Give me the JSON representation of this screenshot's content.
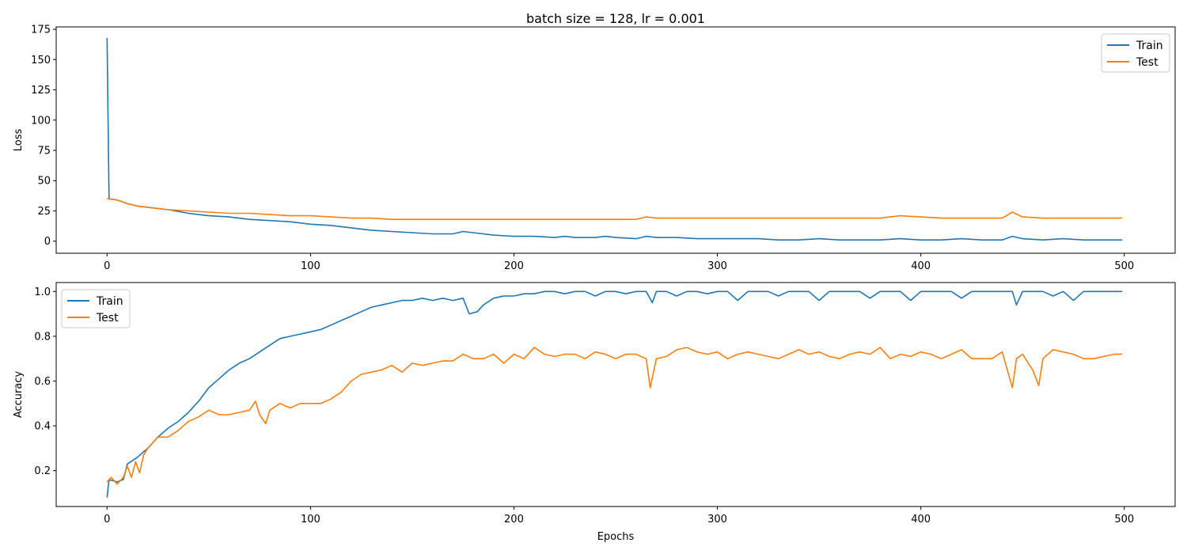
{
  "figure_title": "batch size = 128, lr = 0.001",
  "colors": {
    "train": "#1f77b4",
    "test": "#ff7f0e",
    "axes": "#000000",
    "background": "#ffffff"
  },
  "chart_data": [
    {
      "type": "line",
      "title": "batch size = 128, lr = 0.001",
      "xlabel": "",
      "ylabel": "Loss",
      "xlim": [
        -25,
        525
      ],
      "ylim": [
        -10,
        177
      ],
      "xticks": [
        0,
        100,
        200,
        300,
        400,
        500
      ],
      "yticks": [
        0,
        25,
        50,
        75,
        100,
        125,
        150,
        175
      ],
      "grid": false,
      "legend": "top-right",
      "series": [
        {
          "name": "Train",
          "color": "#1f77b4",
          "x": [
            0,
            1,
            5,
            10,
            15,
            20,
            25,
            30,
            40,
            50,
            60,
            70,
            80,
            90,
            100,
            110,
            120,
            130,
            140,
            150,
            160,
            170,
            175,
            180,
            190,
            200,
            210,
            220,
            225,
            230,
            240,
            245,
            250,
            260,
            265,
            270,
            280,
            290,
            300,
            310,
            320,
            330,
            340,
            350,
            360,
            370,
            380,
            390,
            400,
            410,
            420,
            430,
            440,
            445,
            450,
            460,
            470,
            480,
            490,
            499
          ],
          "values": [
            168,
            35,
            34,
            31,
            29,
            28,
            27,
            26,
            23,
            21,
            20,
            18,
            17,
            16,
            14,
            13,
            11,
            9,
            8,
            7,
            6,
            6,
            8,
            7,
            5,
            4,
            4,
            3,
            4,
            3,
            3,
            4,
            3,
            2,
            4,
            3,
            3,
            2,
            2,
            2,
            2,
            1,
            1,
            2,
            1,
            1,
            1,
            2,
            1,
            1,
            2,
            1,
            1,
            4,
            2,
            1,
            2,
            1,
            1,
            1
          ]
        },
        {
          "name": "Test",
          "color": "#ff7f0e",
          "x": [
            0,
            5,
            10,
            15,
            20,
            25,
            30,
            40,
            50,
            60,
            70,
            80,
            90,
            100,
            110,
            120,
            130,
            140,
            150,
            160,
            170,
            180,
            190,
            200,
            210,
            220,
            230,
            240,
            250,
            260,
            265,
            270,
            280,
            290,
            300,
            310,
            320,
            330,
            340,
            350,
            360,
            370,
            380,
            390,
            400,
            410,
            420,
            430,
            440,
            445,
            450,
            460,
            470,
            480,
            490,
            499
          ],
          "values": [
            35,
            34,
            31,
            29,
            28,
            27,
            26,
            25,
            24,
            23,
            23,
            22,
            21,
            21,
            20,
            19,
            19,
            18,
            18,
            18,
            18,
            18,
            18,
            18,
            18,
            18,
            18,
            18,
            18,
            18,
            20,
            19,
            19,
            19,
            19,
            19,
            19,
            19,
            19,
            19,
            19,
            19,
            19,
            21,
            20,
            19,
            19,
            19,
            19,
            24,
            20,
            19,
            19,
            19,
            19,
            19
          ]
        }
      ]
    },
    {
      "type": "line",
      "title": "",
      "xlabel": "Epochs",
      "ylabel": "Accuracy",
      "xlim": [
        -25,
        525
      ],
      "ylim": [
        0.04,
        1.04
      ],
      "xticks": [
        0,
        100,
        200,
        300,
        400,
        500
      ],
      "yticks": [
        0.2,
        0.4,
        0.6,
        0.8,
        1.0
      ],
      "grid": false,
      "legend": "top-left",
      "series": [
        {
          "name": "Train",
          "color": "#1f77b4",
          "x": [
            0,
            1,
            5,
            8,
            10,
            15,
            20,
            25,
            30,
            35,
            40,
            45,
            50,
            55,
            60,
            65,
            70,
            75,
            80,
            85,
            90,
            95,
            100,
            105,
            110,
            115,
            120,
            125,
            130,
            135,
            140,
            145,
            150,
            155,
            160,
            165,
            170,
            175,
            178,
            182,
            185,
            190,
            195,
            200,
            205,
            210,
            215,
            220,
            225,
            230,
            235,
            240,
            245,
            250,
            255,
            260,
            265,
            268,
            270,
            275,
            280,
            285,
            290,
            295,
            300,
            305,
            310,
            315,
            320,
            325,
            330,
            335,
            340,
            345,
            350,
            355,
            360,
            365,
            370,
            375,
            380,
            385,
            390,
            395,
            400,
            405,
            410,
            415,
            420,
            425,
            430,
            435,
            440,
            445,
            447,
            450,
            455,
            460,
            465,
            470,
            475,
            480,
            485,
            490,
            495,
            499
          ],
          "values": [
            0.08,
            0.16,
            0.15,
            0.16,
            0.23,
            0.26,
            0.3,
            0.35,
            0.39,
            0.42,
            0.46,
            0.51,
            0.57,
            0.61,
            0.65,
            0.68,
            0.7,
            0.73,
            0.76,
            0.79,
            0.8,
            0.81,
            0.82,
            0.83,
            0.85,
            0.87,
            0.89,
            0.91,
            0.93,
            0.94,
            0.95,
            0.96,
            0.96,
            0.97,
            0.96,
            0.97,
            0.96,
            0.97,
            0.9,
            0.91,
            0.94,
            0.97,
            0.98,
            0.98,
            0.99,
            0.99,
            1.0,
            1.0,
            0.99,
            1.0,
            1.0,
            0.98,
            1.0,
            1.0,
            0.99,
            1.0,
            1.0,
            0.95,
            1.0,
            1.0,
            0.98,
            1.0,
            1.0,
            0.99,
            1.0,
            1.0,
            0.96,
            1.0,
            1.0,
            1.0,
            0.98,
            1.0,
            1.0,
            1.0,
            0.96,
            1.0,
            1.0,
            1.0,
            1.0,
            0.97,
            1.0,
            1.0,
            1.0,
            0.96,
            1.0,
            1.0,
            1.0,
            1.0,
            0.97,
            1.0,
            1.0,
            1.0,
            1.0,
            1.0,
            0.94,
            1.0,
            1.0,
            1.0,
            0.98,
            1.0,
            0.96,
            1.0,
            1.0,
            1.0,
            1.0,
            1.0
          ]
        },
        {
          "name": "Test",
          "color": "#ff7f0e",
          "x": [
            0,
            2,
            5,
            8,
            10,
            12,
            14,
            16,
            18,
            20,
            25,
            30,
            35,
            40,
            45,
            50,
            55,
            60,
            65,
            70,
            73,
            75,
            78,
            80,
            85,
            90,
            95,
            100,
            105,
            110,
            115,
            120,
            125,
            130,
            135,
            140,
            145,
            150,
            155,
            160,
            165,
            170,
            175,
            180,
            185,
            190,
            195,
            200,
            205,
            210,
            215,
            220,
            225,
            230,
            235,
            240,
            245,
            250,
            255,
            260,
            265,
            267,
            270,
            275,
            280,
            285,
            290,
            295,
            300,
            305,
            310,
            315,
            320,
            325,
            330,
            335,
            340,
            345,
            350,
            355,
            360,
            365,
            370,
            375,
            380,
            385,
            390,
            395,
            400,
            405,
            410,
            415,
            420,
            425,
            430,
            435,
            440,
            445,
            447,
            450,
            455,
            458,
            460,
            465,
            470,
            475,
            480,
            485,
            490,
            495,
            499
          ],
          "values": [
            0.15,
            0.17,
            0.14,
            0.17,
            0.22,
            0.17,
            0.24,
            0.19,
            0.27,
            0.3,
            0.35,
            0.35,
            0.38,
            0.42,
            0.44,
            0.47,
            0.45,
            0.45,
            0.46,
            0.47,
            0.51,
            0.45,
            0.41,
            0.47,
            0.5,
            0.48,
            0.5,
            0.5,
            0.5,
            0.52,
            0.55,
            0.6,
            0.63,
            0.64,
            0.65,
            0.67,
            0.64,
            0.68,
            0.67,
            0.68,
            0.69,
            0.69,
            0.72,
            0.7,
            0.7,
            0.72,
            0.68,
            0.72,
            0.7,
            0.75,
            0.72,
            0.71,
            0.72,
            0.72,
            0.7,
            0.73,
            0.72,
            0.7,
            0.72,
            0.72,
            0.7,
            0.57,
            0.7,
            0.71,
            0.74,
            0.75,
            0.73,
            0.72,
            0.73,
            0.7,
            0.72,
            0.73,
            0.72,
            0.71,
            0.7,
            0.72,
            0.74,
            0.72,
            0.73,
            0.71,
            0.7,
            0.72,
            0.73,
            0.72,
            0.75,
            0.7,
            0.72,
            0.71,
            0.73,
            0.72,
            0.7,
            0.72,
            0.74,
            0.7,
            0.7,
            0.7,
            0.73,
            0.57,
            0.7,
            0.72,
            0.65,
            0.58,
            0.7,
            0.74,
            0.73,
            0.72,
            0.7,
            0.7,
            0.71,
            0.72,
            0.72
          ]
        }
      ]
    }
  ]
}
